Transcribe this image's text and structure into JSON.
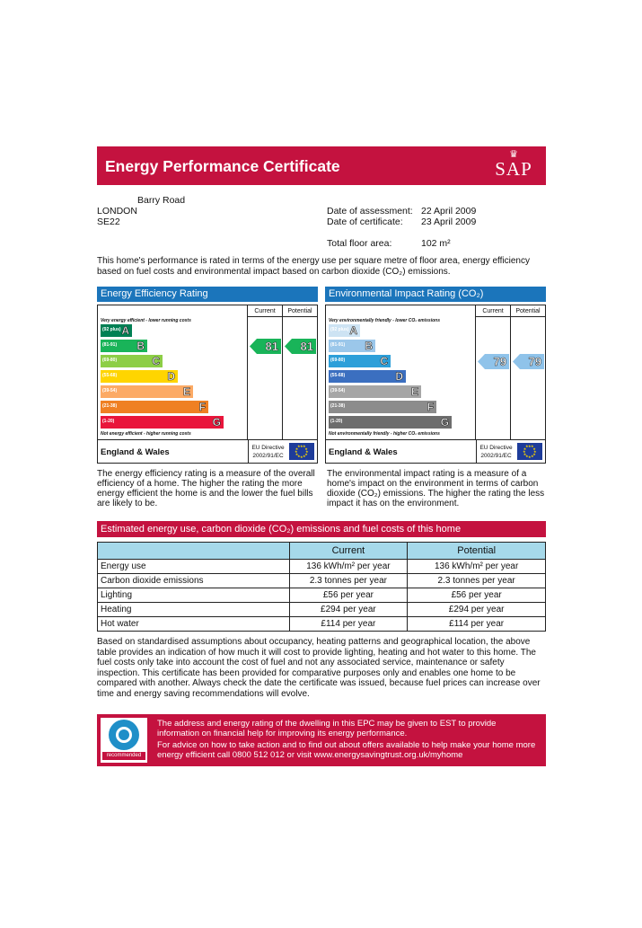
{
  "header": {
    "title": "Energy Performance Certificate",
    "logo_crown": "♛",
    "logo_text": "SAP"
  },
  "address": {
    "line1": "Barry Road",
    "city": "LONDON",
    "postcode": "SE22"
  },
  "meta": {
    "assessment_label": "Date of assessment:",
    "assessment_value": "22 April 2009",
    "certificate_label": "Date of certificate:",
    "certificate_value": "23 April 2009",
    "floor_area_label": "Total floor area:",
    "floor_area_value": "102 m²"
  },
  "intro": "This home's performance is rated in terms of the energy use per square metre of floor area, energy efficiency based on fuel costs and environmental impact based on carbon dioxide (CO₂) emissions.",
  "efficiency": {
    "title": "Energy Efficiency Rating",
    "current_header": "Current",
    "potential_header": "Potential",
    "top_note": "Very energy efficient - lower running costs",
    "bottom_note": "Not energy efficient - higher running costs",
    "region": "England & Wales",
    "directive": "EU Directive 2002/91/EC",
    "bands": [
      {
        "range": "(92 plus)",
        "letter": "A",
        "color": "#008054"
      },
      {
        "range": "(81-91)",
        "letter": "B",
        "color": "#19b459"
      },
      {
        "range": "(69-80)",
        "letter": "C",
        "color": "#8dce46"
      },
      {
        "range": "(55-68)",
        "letter": "D",
        "color": "#ffd500"
      },
      {
        "range": "(39-54)",
        "letter": "E",
        "color": "#fcaa65"
      },
      {
        "range": "(21-38)",
        "letter": "F",
        "color": "#ef8023"
      },
      {
        "range": "(1-20)",
        "letter": "G",
        "color": "#e9153b"
      }
    ],
    "current": "81",
    "potential": "81",
    "arrow_color": "#19b459",
    "explanation": "The energy efficiency rating is a measure of the overall efficiency of a home. The higher the rating the more energy efficient the home is and the lower the fuel bills are likely to be."
  },
  "environmental": {
    "title": "Environmental Impact Rating (CO₂)",
    "current_header": "Current",
    "potential_header": "Potential",
    "top_note": "Very environmentally friendly - lower CO₂ emissions",
    "bottom_note": "Not environmentally friendly - higher CO₂ emissions",
    "region": "England & Wales",
    "directive": "EU Directive 2002/91/EC",
    "bands": [
      {
        "range": "(92 plus)",
        "letter": "A",
        "color": "#cde3f3"
      },
      {
        "range": "(81-91)",
        "letter": "B",
        "color": "#9bc7ea"
      },
      {
        "range": "(69-80)",
        "letter": "C",
        "color": "#2d9fd9"
      },
      {
        "range": "(55-68)",
        "letter": "D",
        "color": "#3b6fc0"
      },
      {
        "range": "(39-54)",
        "letter": "E",
        "color": "#a6a6a6"
      },
      {
        "range": "(21-38)",
        "letter": "F",
        "color": "#8c8c8c"
      },
      {
        "range": "(1-20)",
        "letter": "G",
        "color": "#6d6d6d"
      }
    ],
    "current": "79",
    "potential": "79",
    "arrow_color": "#8fc3ea",
    "explanation": "The environmental impact rating is a measure of a home's impact on the environment in terms of carbon dioxide (CO₂) emissions. The higher the rating the less impact it has on the environment."
  },
  "estimated": {
    "title": "Estimated energy use, carbon dioxide (CO₂) emissions and fuel costs of this home",
    "col_current": "Current",
    "col_potential": "Potential",
    "rows": [
      {
        "label": "Energy use",
        "current": "136 kWh/m² per year",
        "potential": "136 kWh/m² per year"
      },
      {
        "label": "Carbon dioxide emissions",
        "current": "2.3 tonnes per year",
        "potential": "2.3 tonnes per year"
      },
      {
        "label": "Lighting",
        "current": "£56 per year",
        "potential": "£56 per year"
      },
      {
        "label": "Heating",
        "current": "£294 per year",
        "potential": "£294 per year"
      },
      {
        "label": "Hot water",
        "current": "£114 per year",
        "potential": "£114 per year"
      }
    ]
  },
  "note": "Based on standardised assumptions about occupancy, heating patterns and geographical location, the above table provides an indication of how much it will cost to provide lighting, heating and hot water to this home. The fuel costs only take into account the cost of fuel and not any associated service, maintenance or safety inspection. This certificate has been provided for comparative purposes only and enables one home to be compared with another. Always check the date the certificate was issued, because fuel prices can increase over time and energy saving recommendations will evolve.",
  "est_box": {
    "logo_label": "recommended",
    "para1": "The address and energy rating of the dwelling in this EPC may be given to EST to provide information on financial help for improving its energy performance.",
    "para2": "For advice on how to take action and to find out about offers available to help make your home more energy efficient call 0800 512 012 or visit www.energysavingtrust.org.uk/myhome"
  },
  "colors": {
    "brand_red": "#c4123f",
    "header_blue": "#1b75bb",
    "table_header": "#a6d9ea"
  }
}
